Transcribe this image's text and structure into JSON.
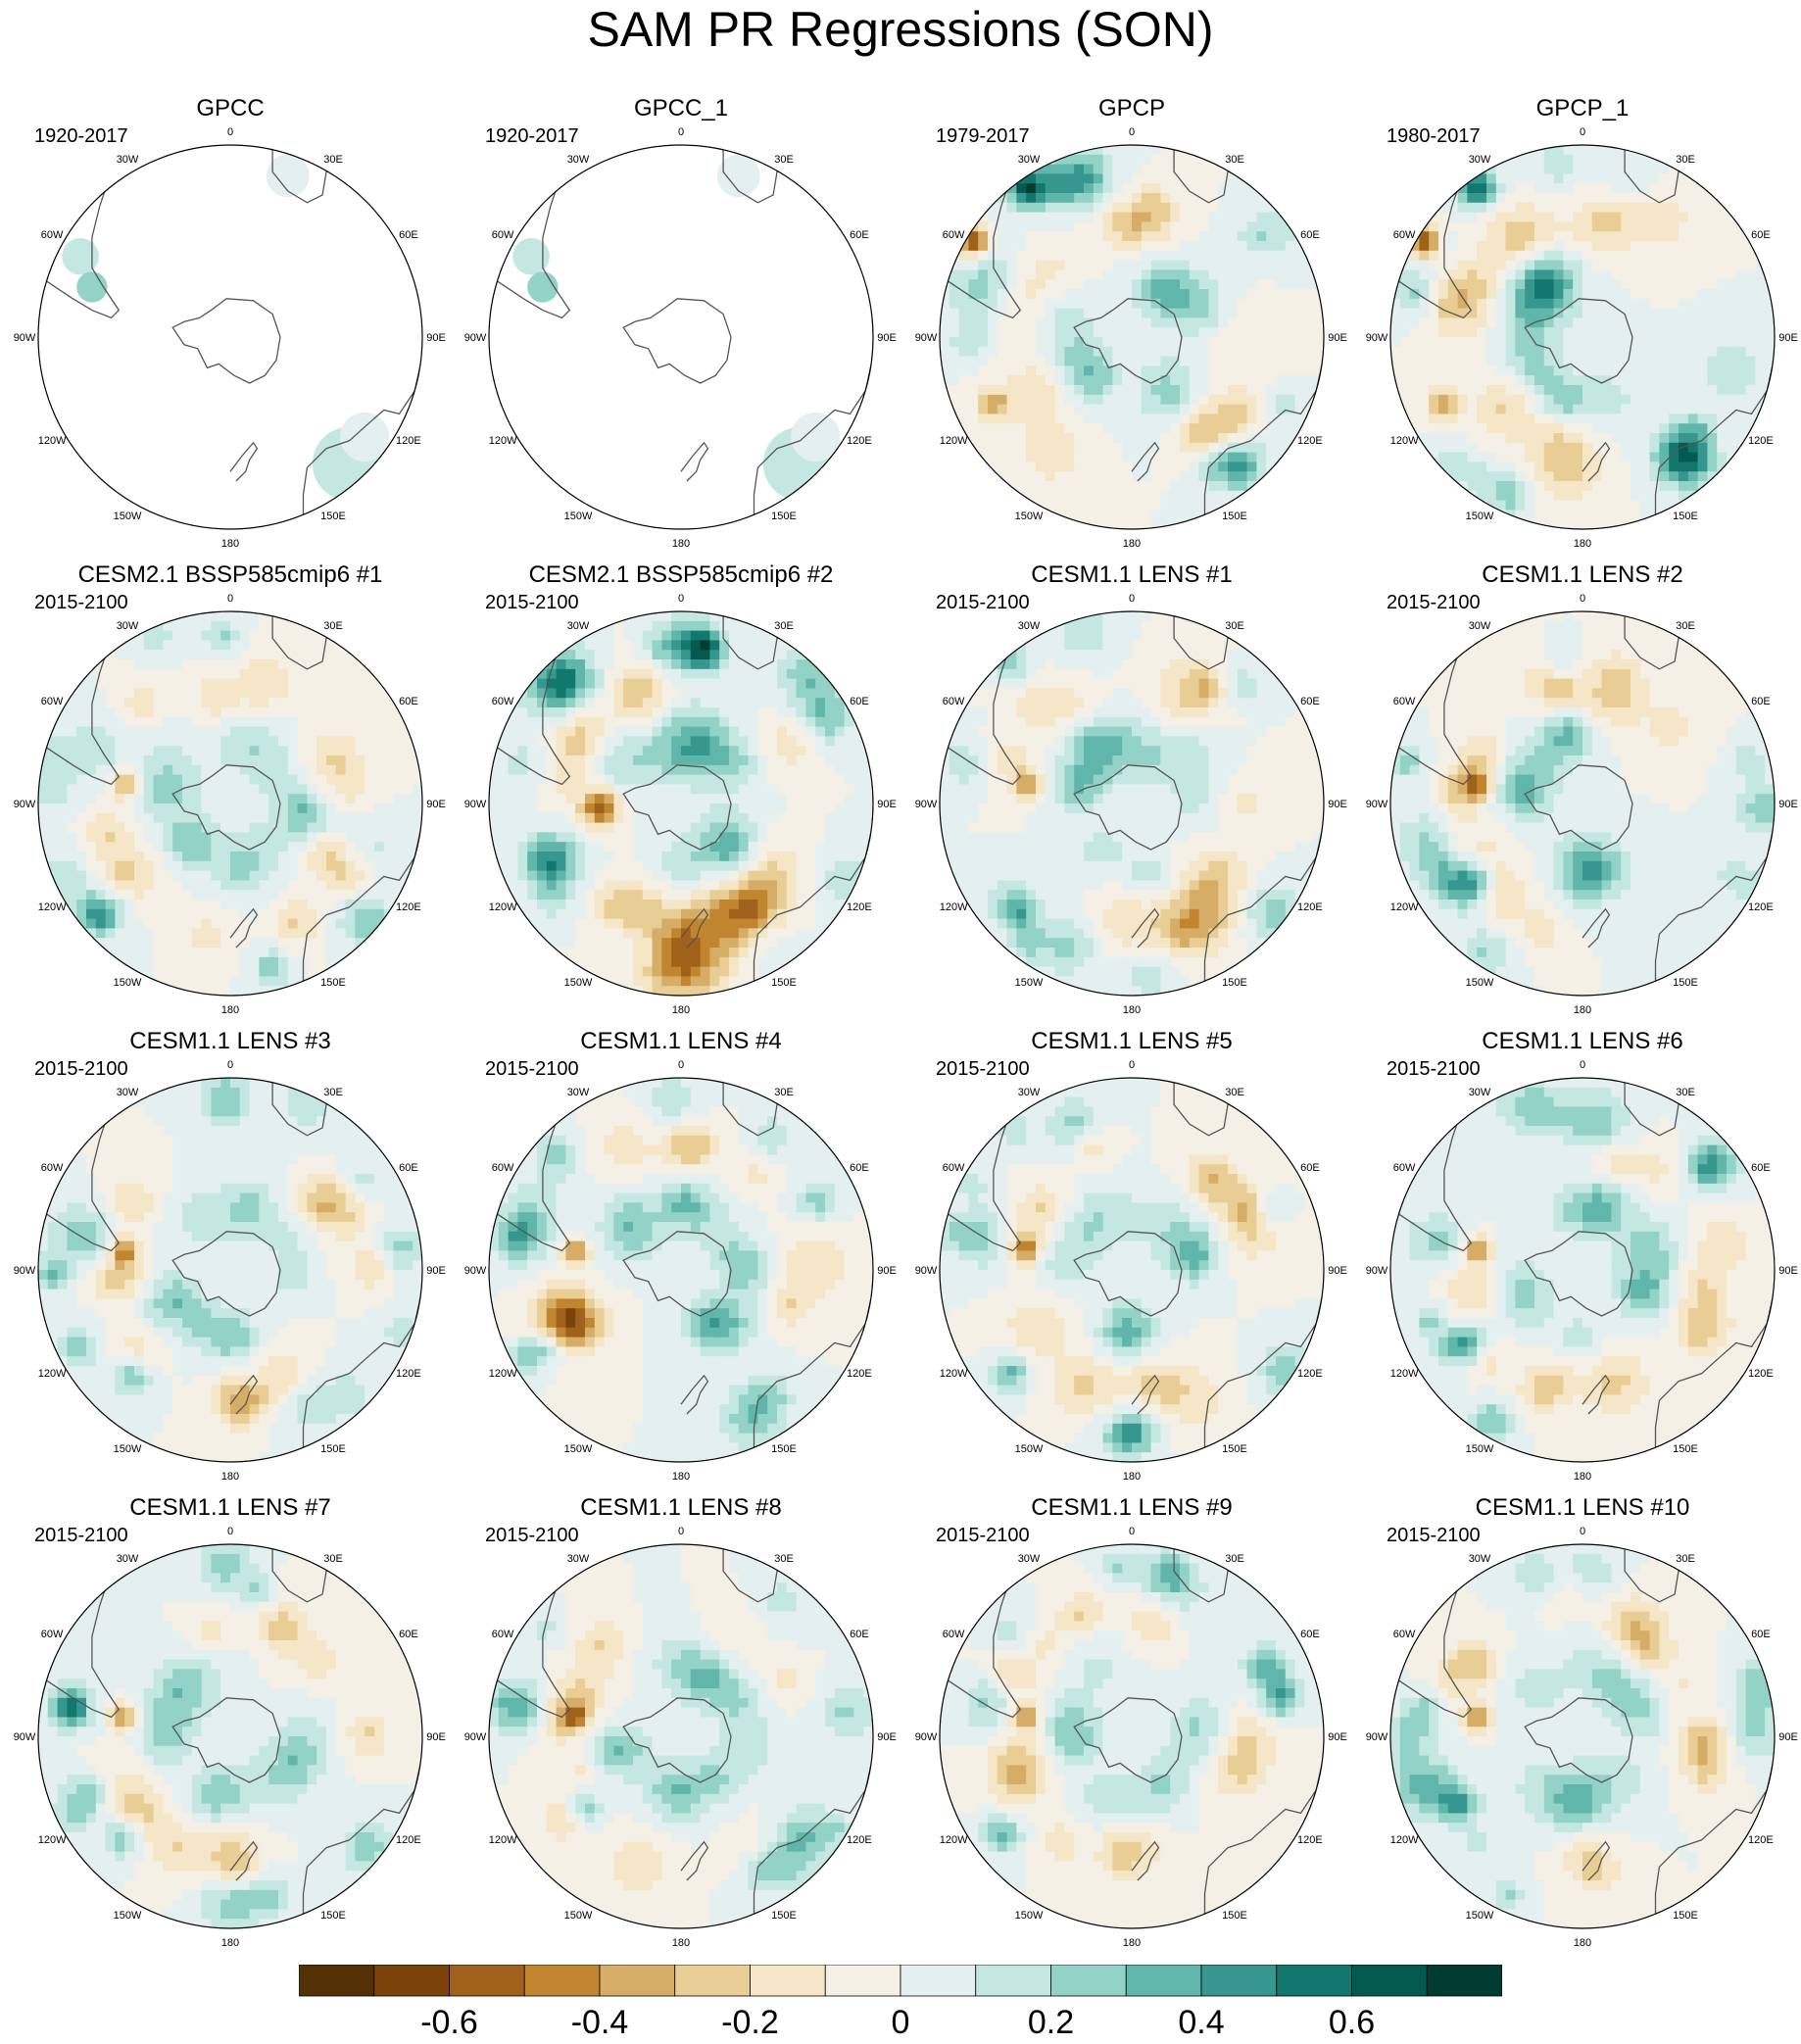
{
  "title": "SAM PR Regressions (SON)",
  "colors": {
    "brown_dark": "#543005",
    "teal_dark": "#003c30",
    "land_line": "#555555"
  },
  "chart_data": {
    "type": "heatmap",
    "projection": "south-polar-stereographic",
    "layout": {
      "rows": 4,
      "cols": 4
    },
    "longitude_labels": [
      "0",
      "30E",
      "60E",
      "90E",
      "120E",
      "150E",
      "180",
      "150W",
      "120W",
      "90W",
      "60W",
      "30W"
    ],
    "panels": [
      {
        "title": "GPCC",
        "period": "1920-2017",
        "coverage": "land-only",
        "pattern": "obs-gpcc"
      },
      {
        "title": "GPCC_1",
        "period": "1920-2017",
        "coverage": "land-only",
        "pattern": "obs-gpcc"
      },
      {
        "title": "GPCP",
        "period": "1979-2017",
        "coverage": "global",
        "pattern": "obs-gpcp"
      },
      {
        "title": "GPCP_1",
        "period": "1980-2017",
        "coverage": "global",
        "pattern": "obs-gpcp"
      },
      {
        "title": "CESM2.1 BSSP585cmip6 #1",
        "period": "2015-2100",
        "coverage": "global",
        "pattern": "model"
      },
      {
        "title": "CESM2.1 BSSP585cmip6 #2",
        "period": "2015-2100",
        "coverage": "global",
        "pattern": "model-strong"
      },
      {
        "title": "CESM1.1 LENS #1",
        "period": "2015-2100",
        "coverage": "global",
        "pattern": "model"
      },
      {
        "title": "CESM1.1 LENS #2",
        "period": "2015-2100",
        "coverage": "global",
        "pattern": "model"
      },
      {
        "title": "CESM1.1 LENS #3",
        "period": "2015-2100",
        "coverage": "global",
        "pattern": "model"
      },
      {
        "title": "CESM1.1 LENS #4",
        "period": "2015-2100",
        "coverage": "global",
        "pattern": "model"
      },
      {
        "title": "CESM1.1 LENS #5",
        "period": "2015-2100",
        "coverage": "global",
        "pattern": "model"
      },
      {
        "title": "CESM1.1 LENS #6",
        "period": "2015-2100",
        "coverage": "global",
        "pattern": "model"
      },
      {
        "title": "CESM1.1 LENS #7",
        "period": "2015-2100",
        "coverage": "global",
        "pattern": "model"
      },
      {
        "title": "CESM1.1 LENS #8",
        "period": "2015-2100",
        "coverage": "global",
        "pattern": "model"
      },
      {
        "title": "CESM1.1 LENS #9",
        "period": "2015-2100",
        "coverage": "global",
        "pattern": "model"
      },
      {
        "title": "CESM1.1 LENS #10",
        "period": "2015-2100",
        "coverage": "global",
        "pattern": "model"
      }
    ],
    "colorbar": {
      "min": -0.8,
      "max": 0.8,
      "step": 0.1,
      "colors": [
        "#543005",
        "#7b4309",
        "#a0621b",
        "#c1852f",
        "#d6ad66",
        "#e8cd94",
        "#f4e6c6",
        "#f4f0e6",
        "#e4f0f0",
        "#c4e8e1",
        "#93d2c7",
        "#60b6aa",
        "#35978e",
        "#12786e",
        "#045a4e",
        "#003c30"
      ],
      "tick_values": [
        -0.6,
        -0.4,
        -0.2,
        0,
        0.2,
        0.4,
        0.6
      ],
      "tick_labels": [
        "-0.6",
        "-0.4",
        "-0.2",
        "0",
        "0.2",
        "0.4",
        "0.6"
      ]
    }
  }
}
